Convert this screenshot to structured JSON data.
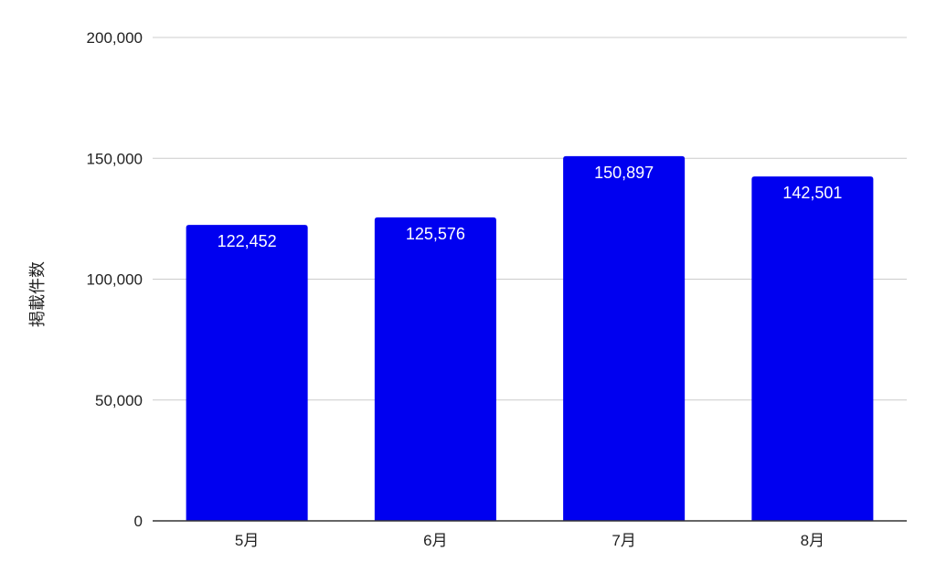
{
  "chart_data": {
    "type": "bar",
    "categories": [
      "5月",
      "6月",
      "7月",
      "8月"
    ],
    "values": [
      122452,
      125576,
      150897,
      142501
    ],
    "data_labels": [
      "122,452",
      "125,576",
      "150,897",
      "142,501"
    ],
    "title": "",
    "xlabel": "",
    "ylabel": "掲載件数",
    "ylim": [
      0,
      200000
    ],
    "yticks": [
      0,
      50000,
      100000,
      150000,
      200000
    ],
    "ytick_labels": [
      "0",
      "50,000",
      "100,000",
      "150,000",
      "200,000"
    ],
    "grid": true,
    "legend": "none",
    "colors": {
      "bar": "#0000f0",
      "grid": "#cccccc",
      "axis": "#333333",
      "text": "#222222",
      "label_text": "#ffffff"
    }
  }
}
